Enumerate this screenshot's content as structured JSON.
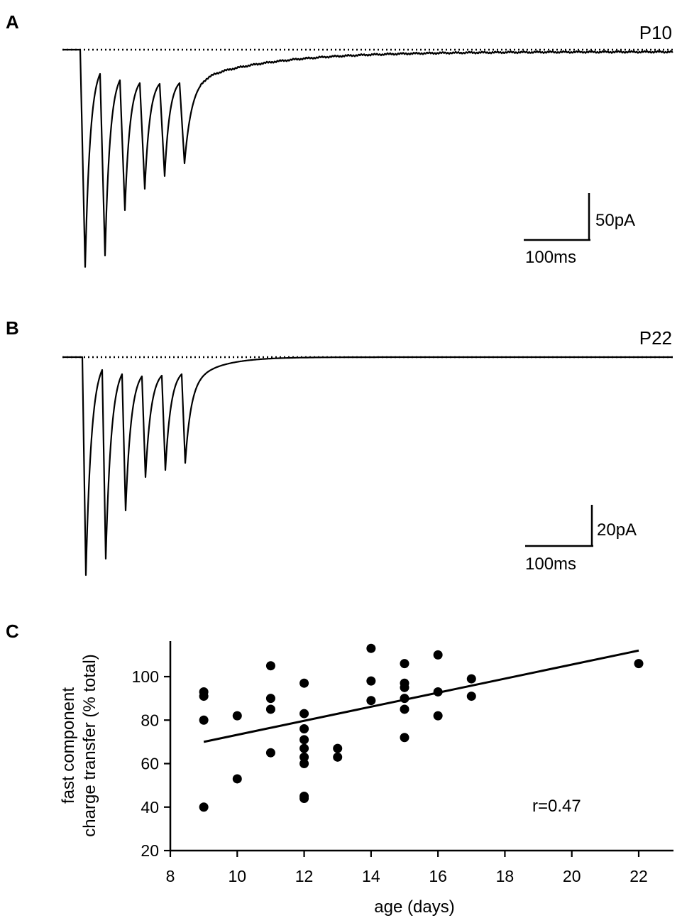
{
  "panels": {
    "a": {
      "letter": "A",
      "label": "P10",
      "scale_y": "50pA",
      "scale_x": "100ms"
    },
    "b": {
      "letter": "B",
      "label": "P22",
      "scale_y": "20pA",
      "scale_x": "100ms"
    },
    "c": {
      "letter": "C"
    }
  },
  "chart_data": {
    "type": "scatter",
    "xlabel": "age (days)",
    "ylabel_line1": "fast component",
    "ylabel_line2": "charge transfer (% total)",
    "xlim": [
      8,
      23
    ],
    "ylim": [
      20,
      115
    ],
    "xticks": [
      8,
      10,
      12,
      14,
      16,
      18,
      20,
      22
    ],
    "yticks": [
      20,
      40,
      60,
      80,
      100
    ],
    "points": [
      [
        9,
        93
      ],
      [
        9,
        91
      ],
      [
        9,
        80
      ],
      [
        9,
        40
      ],
      [
        10,
        82
      ],
      [
        10,
        53
      ],
      [
        11,
        105
      ],
      [
        11,
        90
      ],
      [
        11,
        85
      ],
      [
        11,
        65
      ],
      [
        12,
        97
      ],
      [
        12,
        83
      ],
      [
        12,
        76
      ],
      [
        12,
        71
      ],
      [
        12,
        67
      ],
      [
        12,
        63
      ],
      [
        12,
        60
      ],
      [
        12,
        45
      ],
      [
        12,
        44
      ],
      [
        13,
        67
      ],
      [
        13,
        63
      ],
      [
        14,
        113
      ],
      [
        14,
        98
      ],
      [
        14,
        89
      ],
      [
        15,
        106
      ],
      [
        15,
        97
      ],
      [
        15,
        95
      ],
      [
        15,
        90
      ],
      [
        15,
        85
      ],
      [
        15,
        72
      ],
      [
        16,
        110
      ],
      [
        16,
        93
      ],
      [
        16,
        82
      ],
      [
        17,
        99
      ],
      [
        17,
        91
      ],
      [
        22,
        106
      ]
    ],
    "fit_line": {
      "x": [
        9,
        22
      ],
      "y": [
        70,
        112
      ]
    },
    "annotation": "r=0.47"
  }
}
